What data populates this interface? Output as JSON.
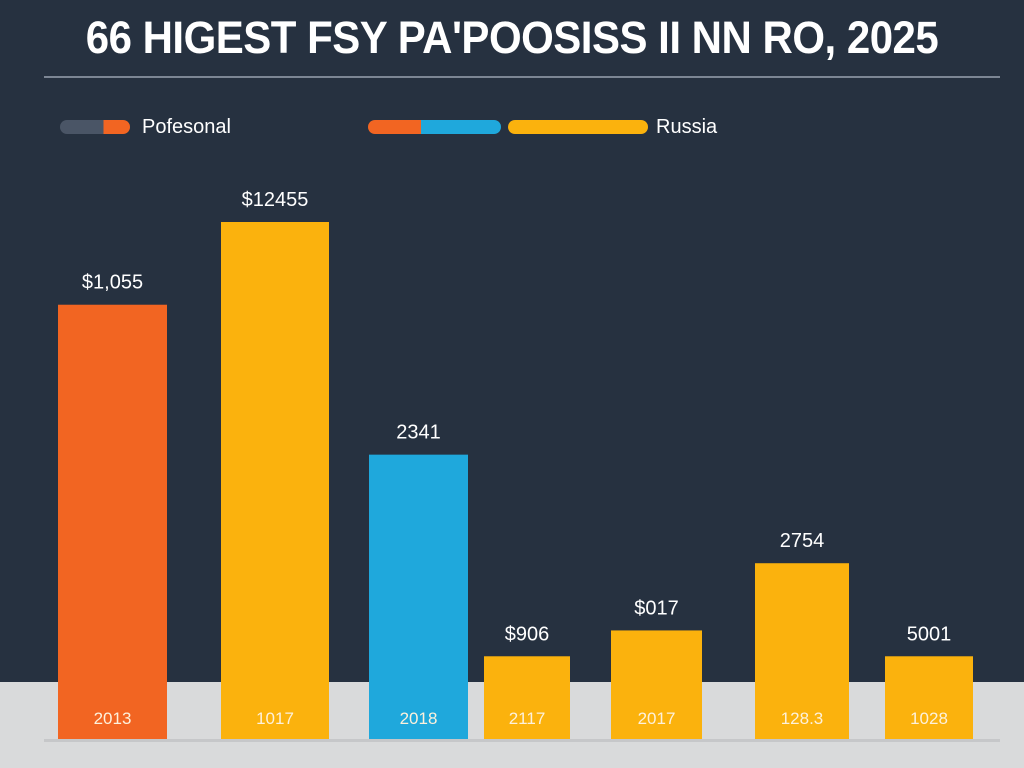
{
  "chart_data": {
    "type": "bar",
    "title": "66 HIGEST FSY PA'POOSISS II NN RO, 2025",
    "legend": [
      {
        "label": "Pofesonal",
        "colors": [
          "#4a5566",
          "#f26522"
        ]
      },
      {
        "label": "Russia",
        "colors": [
          "#f26522",
          "#1fa8dc",
          "#fbb20d"
        ]
      }
    ],
    "legend_placement": "top-left",
    "categories": [
      "2013",
      "1017",
      "2018",
      "2117",
      "2017",
      "128.3",
      "1028"
    ],
    "value_labels": [
      "$1,055",
      "$12455",
      "2341",
      "$906",
      "$017",
      "2754",
      "5001"
    ],
    "values": [
      84,
      100,
      55,
      16,
      21,
      34,
      16
    ],
    "colors": [
      "#f26522",
      "#fbb20d",
      "#1fa8dc",
      "#fbb20d",
      "#fbb20d",
      "#fbb20d",
      "#fbb20d"
    ],
    "ylim": [
      0,
      100
    ],
    "grid": false,
    "xlabel": "",
    "ylabel": ""
  }
}
